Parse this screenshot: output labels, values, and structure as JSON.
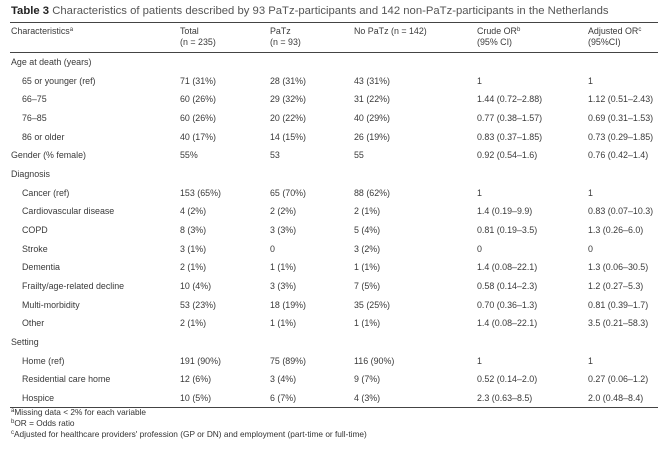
{
  "caption": {
    "label": "Table 3",
    "text": "Characteristics of patients described by 93 PaTz-participants and 142 non-PaTz-participants in the Netherlands"
  },
  "header": {
    "characteristics": "Characteristics",
    "characteristics_sup": "a",
    "total": "Total",
    "total_n": "(n = 235)",
    "patz": "PaTz",
    "patz_n": "(n = 93)",
    "nopatz": "No PaTz (n = 142)",
    "crude": "Crude OR",
    "crude_sup": "b",
    "crude_ci": "(95% CI)",
    "adjusted": "Adjusted OR",
    "adjusted_sup": "c",
    "adjusted_ci": "(95%CI)"
  },
  "rows": [
    {
      "label": "Age at death (years)",
      "total": "",
      "patz": "",
      "nopatz": "",
      "crude": "",
      "adjusted": ""
    },
    {
      "label": "65 or younger (ref)",
      "total": "71 (31%)",
      "patz": "28 (31%)",
      "nopatz": "43 (31%)",
      "crude": "1",
      "adjusted": "1"
    },
    {
      "label": "66–75",
      "total": "60 (26%)",
      "patz": "29 (32%)",
      "nopatz": "31 (22%)",
      "crude": "1.44 (0.72–2.88)",
      "adjusted": "1.12 (0.51–2.43)"
    },
    {
      "label": "76–85",
      "total": "60 (26%)",
      "patz": "20 (22%)",
      "nopatz": "40 (29%)",
      "crude": "0.77 (0.38–1.57)",
      "adjusted": "0.69 (0.31–1.53)"
    },
    {
      "label": "86 or older",
      "total": "40 (17%)",
      "patz": "14 (15%)",
      "nopatz": "26 (19%)",
      "crude": "0.83 (0.37–1.85)",
      "adjusted": "0.73 (0.29–1.85)"
    },
    {
      "label": "Gender (% female)",
      "total": "55%",
      "patz": "53",
      "nopatz": "55",
      "crude": "0.92 (0.54–1.6)",
      "adjusted": "0.76 (0.42–1.4)"
    },
    {
      "label": "Diagnosis",
      "total": "",
      "patz": "",
      "nopatz": "",
      "crude": "",
      "adjusted": ""
    },
    {
      "label": "Cancer (ref)",
      "total": "153 (65%)",
      "patz": "65 (70%)",
      "nopatz": "88 (62%)",
      "crude": "1",
      "adjusted": "1"
    },
    {
      "label": "Cardiovascular disease",
      "total": "4 (2%)",
      "patz": "2 (2%)",
      "nopatz": "2 (1%)",
      "crude": "1.4 (0.19–9.9)",
      "adjusted": "0.83 (0.07–10.3)"
    },
    {
      "label": "COPD",
      "total": "8 (3%)",
      "patz": "3 (3%)",
      "nopatz": "5 (4%)",
      "crude": "0.81 (0.19–3.5)",
      "adjusted": "1.3 (0.26–6.0)"
    },
    {
      "label": "Stroke",
      "total": "3 (1%)",
      "patz": "0",
      "nopatz": "3 (2%)",
      "crude": "0",
      "adjusted": "0"
    },
    {
      "label": "Dementia",
      "total": "2 (1%)",
      "patz": "1 (1%)",
      "nopatz": "1 (1%)",
      "crude": "1.4 (0.08–22.1)",
      "adjusted": "1.3 (0.06–30.5)"
    },
    {
      "label": "Frailty/age-related decline",
      "total": "10 (4%)",
      "patz": "3 (3%)",
      "nopatz": "7 (5%)",
      "crude": "0.58 (0.14–2.3)",
      "adjusted": "1.2 (0.27–5.3)"
    },
    {
      "label": "Multi-morbidity",
      "total": "53 (23%)",
      "patz": "18 (19%)",
      "nopatz": "35 (25%)",
      "crude": "0.70 (0.36–1.3)",
      "adjusted": "0.81 (0.39–1.7)"
    },
    {
      "label": "Other",
      "total": "2 (1%)",
      "patz": "1 (1%)",
      "nopatz": "1 (1%)",
      "crude": "1.4 (0.08–22.1)",
      "adjusted": "3.5 (0.21–58.3)"
    },
    {
      "label": "Setting",
      "total": "",
      "patz": "",
      "nopatz": "",
      "crude": "",
      "adjusted": ""
    },
    {
      "label": "Home (ref)",
      "total": "191 (90%)",
      "patz": "75 (89%)",
      "nopatz": "116 (90%)",
      "crude": "1",
      "adjusted": "1"
    },
    {
      "label": "Residential care home",
      "total": "12 (6%)",
      "patz": "3 (4%)",
      "nopatz": "9 (7%)",
      "crude": "0.52 (0.14–2.0)",
      "adjusted": "0.27 (0.06–1.2)"
    },
    {
      "label": "Hospice",
      "total": "10 (5%)",
      "patz": "6 (7%)",
      "nopatz": "4 (3%)",
      "crude": "2.3 (0.63–8.5)",
      "adjusted": "2.0 (0.48–8.4)"
    }
  ],
  "footnotes": [
    {
      "sup": "a",
      "text": "Missing data < 2% for each variable"
    },
    {
      "sup": "b",
      "text": "OR = Odds ratio"
    },
    {
      "sup": "c",
      "text": "Adjusted for healthcare providers' profession (GP or DN) and employment (part-time or full-time)"
    }
  ]
}
